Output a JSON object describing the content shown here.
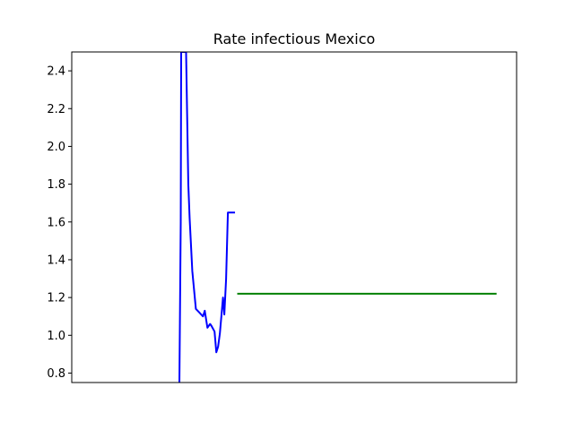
{
  "chart_data": {
    "type": "line",
    "title": "Rate infectious Mexico",
    "xlabel": "",
    "ylabel": "",
    "xlim": [
      0,
      100
    ],
    "ylim": [
      0.75,
      2.5
    ],
    "y_ticks": [
      "0.8",
      "1.0",
      "1.2",
      "1.4",
      "1.6",
      "1.8",
      "2.0",
      "2.2",
      "2.4"
    ],
    "x_ticks_visible": false,
    "grid": false,
    "series": [
      {
        "color": "#0000ff",
        "x": [
          24.2,
          24.5,
          24.6,
          24.9,
          25.3,
          25.7,
          26.2,
          26.5,
          27.1,
          27.9,
          28.7,
          29.5,
          29.9,
          30.5,
          31.1,
          31.4,
          32.1,
          32.5,
          32.9,
          33.3,
          34.0,
          34.3,
          34.7,
          35.1,
          35.5,
          35.9,
          36.3,
          36.7
        ],
        "y": [
          0.75,
          1.6,
          2.5,
          2.5,
          2.5,
          2.5,
          1.8,
          1.62,
          1.34,
          1.14,
          1.12,
          1.1,
          1.13,
          1.04,
          1.06,
          1.05,
          1.02,
          0.91,
          0.94,
          1.01,
          1.2,
          1.11,
          1.3,
          1.65,
          1.65,
          1.65,
          1.65,
          1.65
        ]
      },
      {
        "color": "#008000",
        "x": [
          37.2,
          95.5
        ],
        "y": [
          1.22,
          1.22
        ]
      }
    ]
  }
}
